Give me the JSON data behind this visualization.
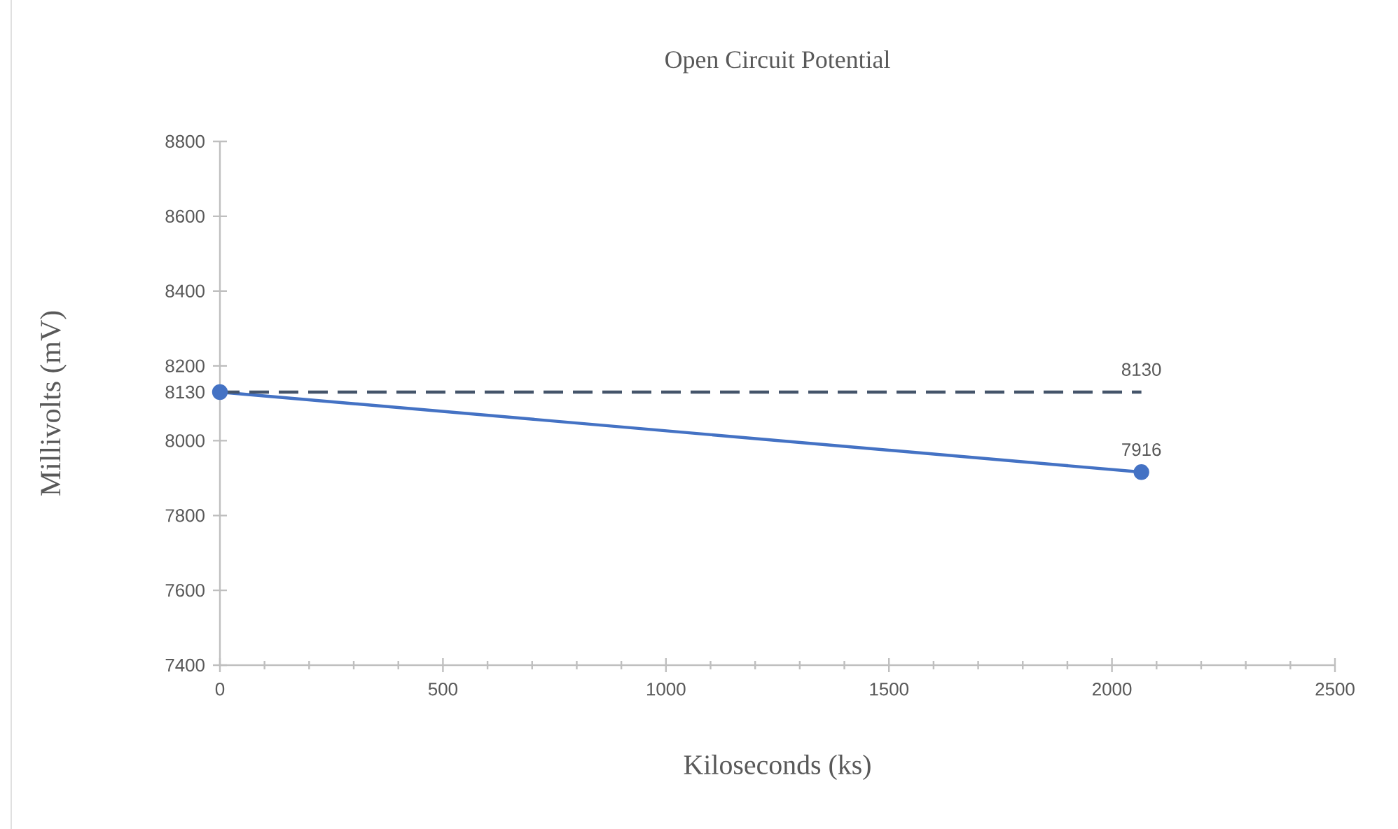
{
  "chart_data": {
    "type": "line",
    "title": "Open Circuit Potential",
    "xlabel": "Kiloseconds (ks)",
    "ylabel": "Millivolts (mV)",
    "x": [
      0,
      2066
    ],
    "series": [
      {
        "color": "#4472c4",
        "values": [
          8130,
          7916
        ],
        "value_labels": [
          null,
          "7916"
        ],
        "marker": "circle",
        "line_style": "solid"
      },
      {
        "color": "#44546a",
        "values": [
          8130,
          8130
        ],
        "value_labels": [
          null,
          "8130"
        ],
        "marker": "none",
        "line_style": "dashed"
      }
    ],
    "xlim": [
      0,
      2500
    ],
    "xticks": [
      0,
      500,
      1000,
      1500,
      2000,
      2500
    ],
    "ylim": [
      7400,
      8800
    ],
    "yticks": [
      7400,
      7600,
      7800,
      8000,
      8130,
      8200,
      8400,
      8600,
      8800
    ]
  }
}
